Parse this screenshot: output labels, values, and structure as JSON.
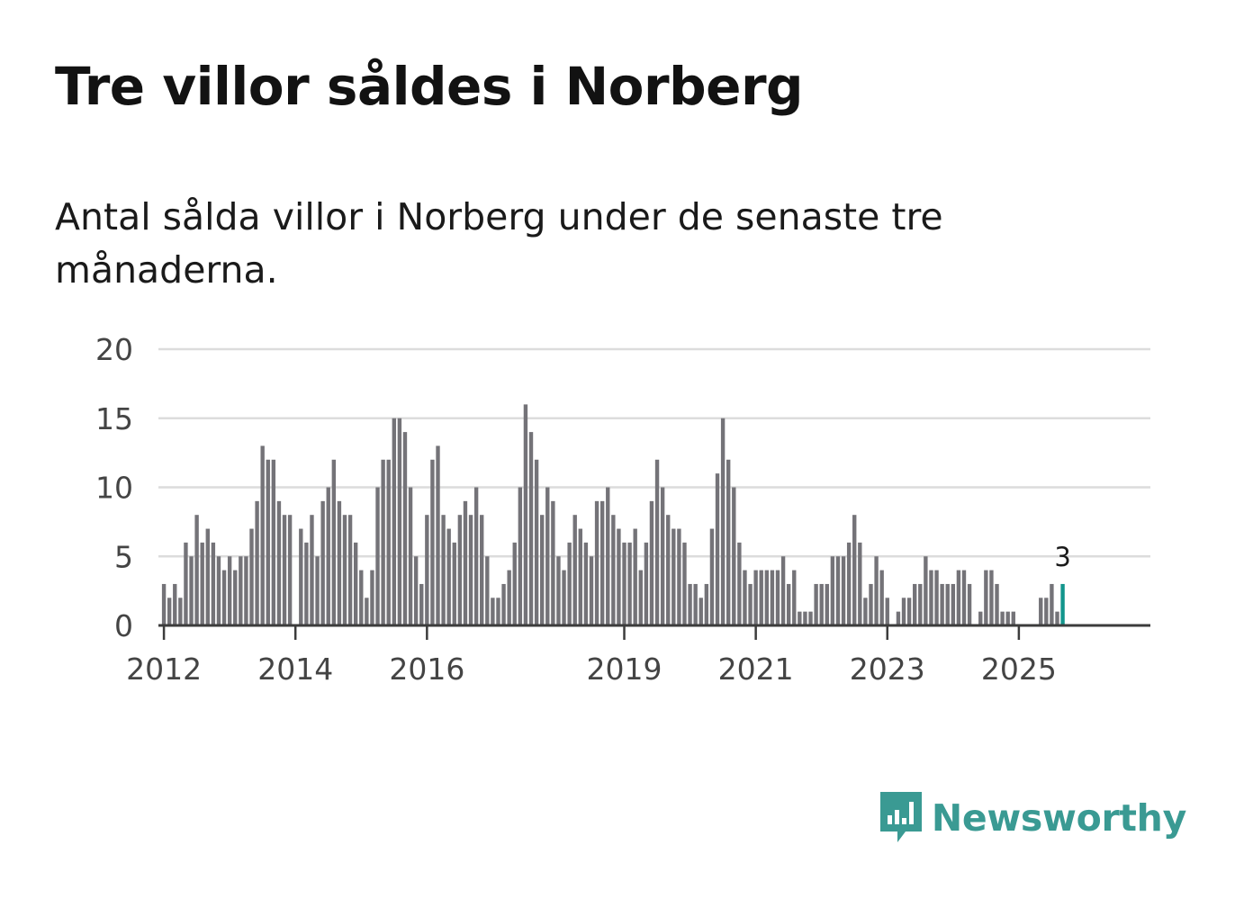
{
  "header": {
    "title": "Tre villor såldes i Norberg",
    "subtitle": "Antal sålda villor i Norberg under de senaste tre månaderna."
  },
  "brand": {
    "name": "Newsworthy",
    "color": "#3a9a93",
    "icon": "newsworthy-logo-icon"
  },
  "colors": {
    "bar": "#747378",
    "highlight": "#12958c",
    "grid": "#dcdcdc",
    "axis": "#3c3c3c"
  },
  "chart_data": {
    "type": "bar",
    "title": "Tre villor såldes i Norberg",
    "subtitle": "Antal sålda villor i Norberg under de senaste tre månaderna.",
    "xlabel": "",
    "ylabel": "",
    "ylim": [
      0,
      20
    ],
    "yticks": [
      0,
      5,
      10,
      15,
      20
    ],
    "grid": true,
    "x_start": "2012-01",
    "xlim_months": [
      -1,
      180
    ],
    "xticks": [
      {
        "label": "2012",
        "month_index": 0
      },
      {
        "label": "2014",
        "month_index": 24
      },
      {
        "label": "2016",
        "month_index": 48
      },
      {
        "label": "2019",
        "month_index": 84
      },
      {
        "label": "2021",
        "month_index": 108
      },
      {
        "label": "2023",
        "month_index": 132
      },
      {
        "label": "2025",
        "month_index": 156
      }
    ],
    "values": [
      3,
      2,
      3,
      2,
      6,
      5,
      8,
      6,
      7,
      6,
      5,
      4,
      5,
      4,
      5,
      5,
      7,
      9,
      13,
      12,
      12,
      9,
      8,
      8,
      0,
      7,
      6,
      8,
      5,
      9,
      10,
      12,
      9,
      8,
      8,
      6,
      4,
      2,
      4,
      10,
      12,
      12,
      15,
      15,
      14,
      10,
      5,
      3,
      8,
      12,
      13,
      8,
      7,
      6,
      8,
      9,
      8,
      10,
      8,
      5,
      2,
      2,
      3,
      4,
      6,
      10,
      16,
      14,
      12,
      8,
      10,
      9,
      5,
      4,
      6,
      8,
      7,
      6,
      5,
      9,
      9,
      10,
      8,
      7,
      6,
      6,
      7,
      4,
      6,
      9,
      12,
      10,
      8,
      7,
      7,
      6,
      3,
      3,
      2,
      3,
      7,
      11,
      15,
      12,
      10,
      6,
      4,
      3,
      4,
      4,
      4,
      4,
      4,
      5,
      3,
      4,
      1,
      1,
      1,
      3,
      3,
      3,
      5,
      5,
      5,
      6,
      8,
      6,
      2,
      3,
      5,
      4,
      2,
      0,
      1,
      2,
      2,
      3,
      3,
      5,
      4,
      4,
      3,
      3,
      3,
      4,
      4,
      3,
      0,
      1,
      4,
      4,
      3,
      1,
      1,
      1,
      0,
      0,
      0,
      0,
      2,
      2,
      3,
      1,
      3
    ],
    "highlight_index": 164,
    "annotation": {
      "index": 164,
      "label": "3"
    }
  }
}
